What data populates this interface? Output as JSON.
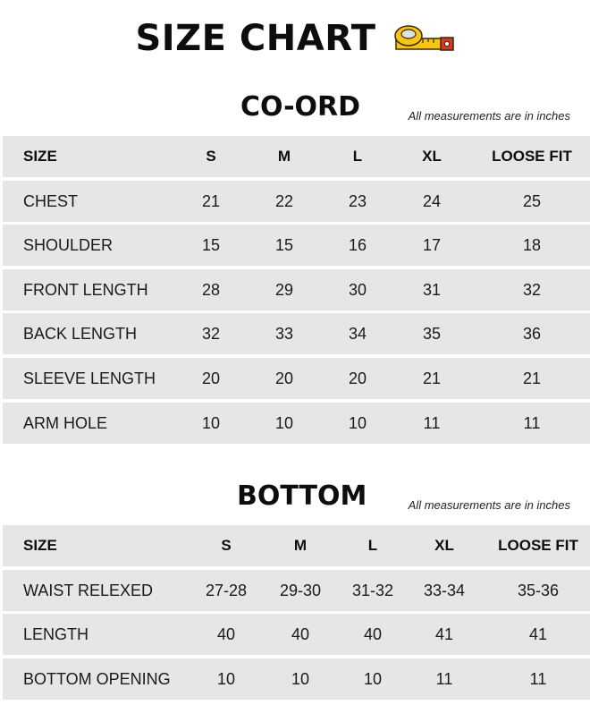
{
  "page_title": "SIZE CHART",
  "title_icon": "measuring-tape-icon",
  "sections": {
    "coord": {
      "title": "CO-ORD",
      "note": "All measurements are in inches",
      "columns": [
        "SIZE",
        "S",
        "M",
        "L",
        "XL",
        "LOOSE FIT"
      ],
      "rows": [
        [
          "CHEST",
          "21",
          "22",
          "23",
          "24",
          "25"
        ],
        [
          "SHOULDER",
          "15",
          "15",
          "16",
          "17",
          "18"
        ],
        [
          "FRONT LENGTH",
          "28",
          "29",
          "30",
          "31",
          "32"
        ],
        [
          "BACK LENGTH",
          "32",
          "33",
          "34",
          "35",
          "36"
        ],
        [
          "SLEEVE LENGTH",
          "20",
          "20",
          "20",
          "21",
          "21"
        ],
        [
          "ARM HOLE",
          "10",
          "10",
          "10",
          "11",
          "11"
        ]
      ]
    },
    "bottom": {
      "title": "BOTTOM",
      "note": "All measurements are in inches",
      "columns": [
        "SIZE",
        "S",
        "M",
        "L",
        "XL",
        "LOOSE FIT"
      ],
      "rows": [
        [
          "WAIST RELEXED",
          "27-28",
          "29-30",
          "31-32",
          "33-34",
          "35-36"
        ],
        [
          "LENGTH",
          "40",
          "40",
          "40",
          "41",
          "41"
        ],
        [
          "BOTTOM OPENING",
          "10",
          "10",
          "10",
          "11",
          "11"
        ]
      ]
    }
  },
  "colors": {
    "row_background": "#e6e6e6",
    "text": "#111111",
    "tape_yellow": "#f5c518",
    "tape_red": "#d9352b"
  }
}
